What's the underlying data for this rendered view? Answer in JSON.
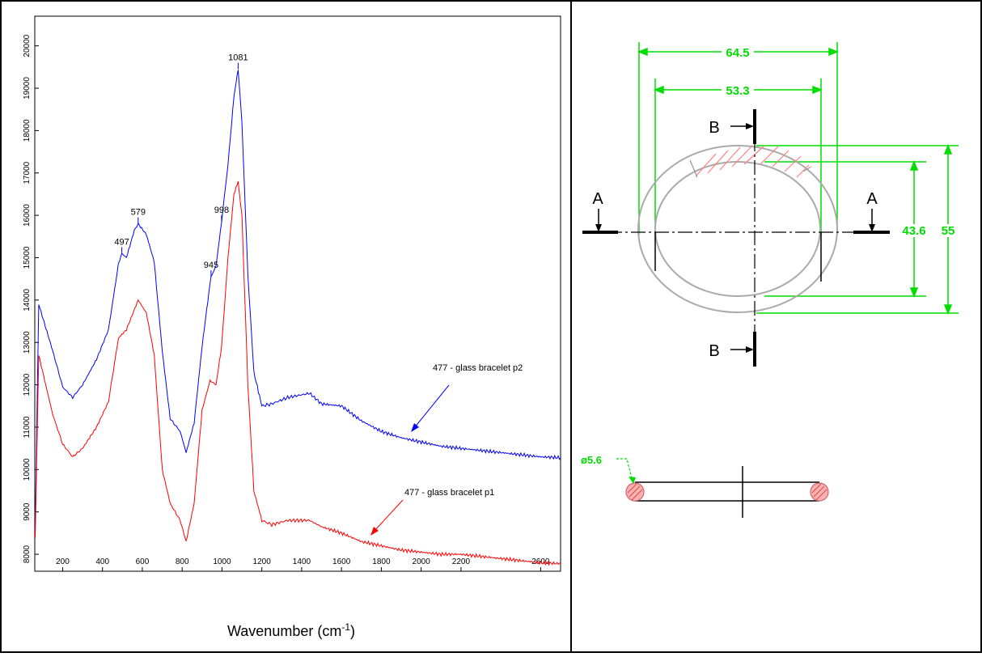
{
  "chart_data": {
    "type": "line",
    "xlabel_base": "Wavenumber (cm",
    "xlabel_sup": "-1",
    "xlabel_tail": ")",
    "x_ticks": [
      "200",
      "400",
      "600",
      "800",
      "1000",
      "1200",
      "1400",
      "1600",
      "1800",
      "2000",
      "2200",
      "2600"
    ],
    "x_tick_values": [
      200,
      400,
      600,
      800,
      1000,
      1200,
      1400,
      1600,
      1800,
      2000,
      2200,
      2600
    ],
    "y_ticks": [
      "8000",
      "9000",
      "10000",
      "11000",
      "12000",
      "13000",
      "14000",
      "15000",
      "16000",
      "17000",
      "18000",
      "19000",
      "20000"
    ],
    "y_tick_values": [
      8000,
      9000,
      10000,
      11000,
      12000,
      13000,
      14000,
      15000,
      16000,
      17000,
      18000,
      19000,
      20000
    ],
    "xlim": [
      60,
      2700
    ],
    "ylim": [
      7600,
      20700
    ],
    "peak_labels": [
      {
        "text": "497",
        "x": 497,
        "y": 15100
      },
      {
        "text": "579",
        "x": 579,
        "y": 15800
      },
      {
        "text": "945",
        "x": 945,
        "y": 14550
      },
      {
        "text": "998",
        "x": 998,
        "y": 15850
      },
      {
        "text": "1081",
        "x": 1081,
        "y": 19450
      }
    ],
    "series": [
      {
        "name": "477 - glass bracelet p2",
        "color": "#0000ff",
        "points": [
          [
            62,
            8600
          ],
          [
            80,
            13900
          ],
          [
            150,
            12800
          ],
          [
            200,
            11950
          ],
          [
            250,
            11700
          ],
          [
            300,
            12000
          ],
          [
            370,
            12600
          ],
          [
            430,
            13300
          ],
          [
            480,
            14850
          ],
          [
            497,
            15100
          ],
          [
            520,
            15000
          ],
          [
            560,
            15650
          ],
          [
            579,
            15800
          ],
          [
            620,
            15550
          ],
          [
            660,
            14900
          ],
          [
            700,
            12800
          ],
          [
            740,
            11200
          ],
          [
            790,
            10900
          ],
          [
            820,
            10400
          ],
          [
            860,
            11100
          ],
          [
            900,
            12900
          ],
          [
            940,
            14400
          ],
          [
            945,
            14550
          ],
          [
            970,
            14800
          ],
          [
            998,
            15850
          ],
          [
            1030,
            17200
          ],
          [
            1060,
            18800
          ],
          [
            1081,
            19450
          ],
          [
            1100,
            18200
          ],
          [
            1130,
            14600
          ],
          [
            1160,
            12300
          ],
          [
            1200,
            11500
          ],
          [
            1250,
            11550
          ],
          [
            1330,
            11700
          ],
          [
            1440,
            11800
          ],
          [
            1500,
            11550
          ],
          [
            1600,
            11500
          ],
          [
            1700,
            11150
          ],
          [
            1800,
            10900
          ],
          [
            1900,
            10750
          ],
          [
            2000,
            10650
          ],
          [
            2100,
            10550
          ],
          [
            2200,
            10500
          ],
          [
            2300,
            10450
          ],
          [
            2400,
            10400
          ],
          [
            2500,
            10350
          ],
          [
            2600,
            10300
          ],
          [
            2700,
            10280
          ]
        ]
      },
      {
        "name": "477 - glass bracelet p1",
        "color": "#ff0000",
        "points": [
          [
            62,
            8400
          ],
          [
            80,
            12700
          ],
          [
            150,
            11300
          ],
          [
            200,
            10600
          ],
          [
            250,
            10300
          ],
          [
            300,
            10500
          ],
          [
            370,
            11000
          ],
          [
            430,
            11600
          ],
          [
            480,
            13100
          ],
          [
            520,
            13300
          ],
          [
            579,
            14000
          ],
          [
            620,
            13700
          ],
          [
            660,
            12700
          ],
          [
            700,
            10000
          ],
          [
            740,
            9200
          ],
          [
            790,
            8800
          ],
          [
            820,
            8300
          ],
          [
            860,
            9200
          ],
          [
            900,
            11400
          ],
          [
            940,
            12100
          ],
          [
            970,
            12000
          ],
          [
            998,
            12900
          ],
          [
            1030,
            15000
          ],
          [
            1060,
            16500
          ],
          [
            1081,
            16800
          ],
          [
            1100,
            16000
          ],
          [
            1130,
            12000
          ],
          [
            1160,
            9500
          ],
          [
            1200,
            8800
          ],
          [
            1250,
            8700
          ],
          [
            1330,
            8800
          ],
          [
            1440,
            8800
          ],
          [
            1500,
            8650
          ],
          [
            1600,
            8500
          ],
          [
            1700,
            8300
          ],
          [
            1800,
            8200
          ],
          [
            1900,
            8100
          ],
          [
            2000,
            8050
          ],
          [
            2100,
            8000
          ],
          [
            2200,
            8000
          ],
          [
            2300,
            7950
          ],
          [
            2400,
            7900
          ],
          [
            2500,
            7850
          ],
          [
            2600,
            7800
          ],
          [
            2700,
            7780
          ]
        ]
      }
    ],
    "legend_annotations": [
      {
        "text": "477 - glass bracelet p2",
        "color": "#0000ff"
      },
      {
        "text": "477 - glass bracelet p1",
        "color": "#ff0000"
      }
    ]
  },
  "drawing": {
    "dims": {
      "outer_width": "64.5",
      "inner_width": "53.3",
      "inner_height": "43.6",
      "outer_height": "55",
      "diameter": "ø5.6"
    },
    "section_labels": {
      "a_left": "A",
      "a_right": "A",
      "b_top": "B",
      "b_bottom": "B"
    },
    "colors": {
      "dimension": "#00dd00",
      "outline": "#aaaaaa",
      "hatch": "#ff8080"
    }
  }
}
